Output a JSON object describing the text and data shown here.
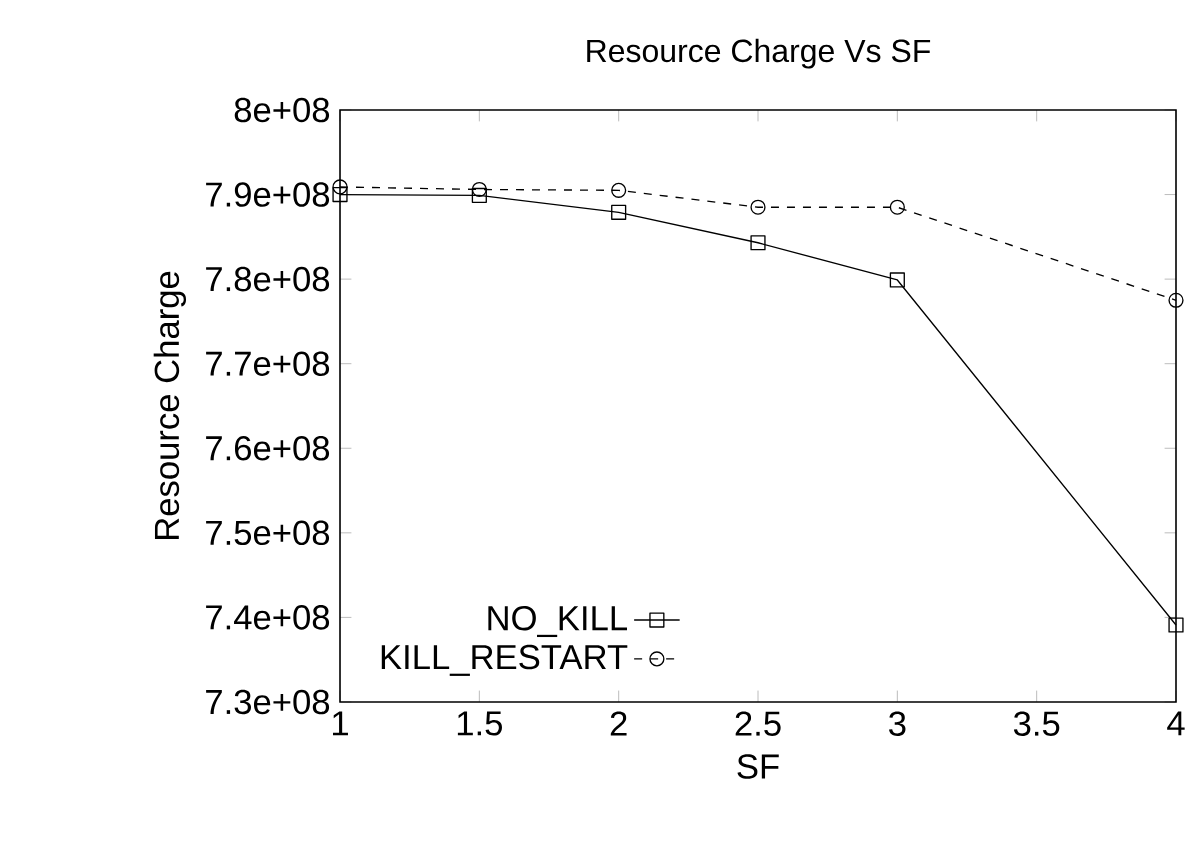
{
  "chart_data": {
    "type": "line",
    "title": "Resource Charge Vs SF",
    "xlabel": "SF",
    "ylabel": "Resource Charge",
    "x": [
      1,
      1.5,
      2,
      2.5,
      3,
      4
    ],
    "series": [
      {
        "name": "NO_KILL",
        "color": "#000000",
        "marker": "square",
        "line_style": "solid",
        "values": [
          790000000,
          789900000,
          787900000,
          784300000,
          779900000,
          739100000
        ]
      },
      {
        "name": "KILL_RESTART",
        "color": "#000000",
        "marker": "circle",
        "line_style": "dashed",
        "values": [
          790900000,
          790600000,
          790500000,
          788500000,
          788500000,
          777500000
        ]
      }
    ],
    "xlim": [
      1,
      4
    ],
    "xticks": [
      1,
      1.5,
      2,
      2.5,
      3,
      3.5,
      4
    ],
    "ylim": [
      730000000,
      800000000
    ],
    "yticks": [
      {
        "value": 730000000,
        "label": "7.3e+08"
      },
      {
        "value": 740000000,
        "label": "7.4e+08"
      },
      {
        "value": 750000000,
        "label": "7.5e+08"
      },
      {
        "value": 760000000,
        "label": "7.6e+08"
      },
      {
        "value": 770000000,
        "label": "7.7e+08"
      },
      {
        "value": 780000000,
        "label": "7.8e+08"
      },
      {
        "value": 790000000,
        "label": "7.9e+08"
      },
      {
        "value": 800000000,
        "label": "8e+08"
      }
    ],
    "grid": false,
    "legend": "bottom left"
  }
}
